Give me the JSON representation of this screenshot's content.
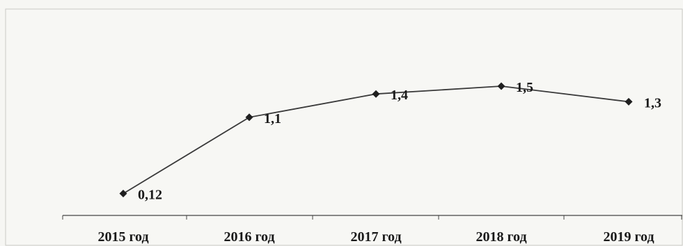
{
  "chart_data": {
    "type": "line",
    "title": "",
    "xlabel": "",
    "ylabel": "",
    "categories": [
      "2015 год",
      "2016 год",
      "2017 год",
      "2018 год",
      "2019 год"
    ],
    "series": [
      {
        "values": [
          0.12,
          1.1,
          1.4,
          1.5,
          1.3
        ],
        "data_labels": [
          "0,12",
          "1,1",
          "1,4",
          "1,5",
          "1,3"
        ]
      }
    ],
    "ylim": [
      0,
      1.7
    ],
    "grid": false,
    "legend": "none",
    "marker": "diamond",
    "line_color": "#3a3a3a",
    "marker_color": "#1f1f1f"
  }
}
